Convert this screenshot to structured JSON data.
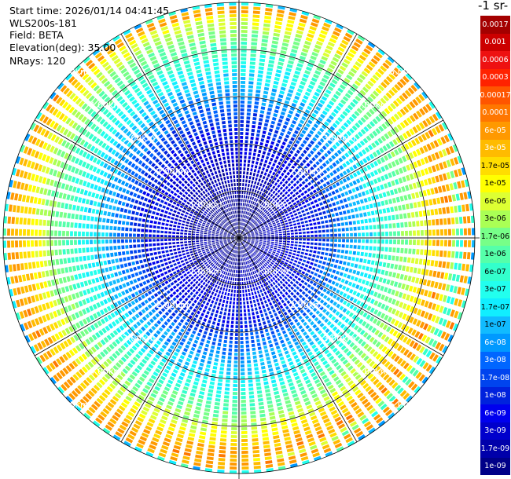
{
  "header": {
    "start_time": "Start time: 2026/01/14 04:41:45",
    "station": "WLS200s-181",
    "field": "Field: BETA",
    "elevation": "Elevation(deg): 35.00",
    "nrays": "NRays: 120"
  },
  "colorbar": {
    "title": "-1 sr-",
    "labels": [
      "0.0017",
      "0.001",
      "0.0006",
      "0.0003",
      "0.00017",
      "0.0001",
      "6e-05",
      "3e-05",
      "1.7e-05",
      "1e-05",
      "6e-06",
      "3e-06",
      "1.7e-06",
      "1e-06",
      "6e-07",
      "3e-07",
      "1.7e-07",
      "1e-07",
      "6e-08",
      "3e-08",
      "1.7e-08",
      "1e-08",
      "6e-09",
      "3e-09",
      "1.7e-09",
      "1e-09"
    ],
    "colors": [
      "#a40000",
      "#cc0000",
      "#ee1111",
      "#ff2200",
      "#ff5500",
      "#ff7700",
      "#ff9900",
      "#ffbb00",
      "#ffdd00",
      "#ffff00",
      "#ddff33",
      "#aaff55",
      "#77ff88",
      "#55ffaa",
      "#33ffcc",
      "#22ffee",
      "#11eeff",
      "#11bbff",
      "#0099ff",
      "#0066ff",
      "#0044ee",
      "#0022dd",
      "#0000ee",
      "#0000cc",
      "#0000aa",
      "#000088"
    ]
  },
  "chart_data": {
    "type": "heatmap",
    "title": "",
    "projection": "polar PPI",
    "nrays": 120,
    "range_labels": [
      {
        "ring_km": 1,
        "labels": [
          "1.00km",
          "1.00km",
          "1.00km",
          "1.00km"
        ]
      },
      {
        "ring_km": 2,
        "labels": [
          "2.00km",
          "2.00km",
          "2.00km",
          "2.00km"
        ]
      },
      {
        "ring_km": 3,
        "labels": [
          "3.00km",
          "3.00km",
          "3.00km",
          "3.00km"
        ]
      },
      {
        "ring_km": 4,
        "labels": [
          "4.00km",
          "4.00km",
          "4.00km",
          "4.00km"
        ]
      },
      {
        "ring_km": 5,
        "labels": [
          "5.00km",
          "5.00km",
          "5.00km",
          "5.00km"
        ]
      }
    ],
    "max_range_km": 5.0,
    "radial_profile_log10_beta": [
      {
        "range_km": 0.0,
        "value": -8.8
      },
      {
        "range_km": 0.5,
        "value": -8.7
      },
      {
        "range_km": 1.0,
        "value": -8.5
      },
      {
        "range_km": 1.5,
        "value": -8.2
      },
      {
        "range_km": 2.0,
        "value": -7.9
      },
      {
        "range_km": 2.5,
        "value": -7.3
      },
      {
        "range_km": 3.0,
        "value": -6.8
      },
      {
        "range_km": 3.5,
        "value": -6.2
      },
      {
        "range_km": 4.0,
        "value": -5.6
      },
      {
        "range_km": 4.5,
        "value": -4.7
      },
      {
        "range_km": 4.8,
        "value": -4.3
      },
      {
        "range_km": 5.0,
        "value": -6.2
      }
    ]
  }
}
